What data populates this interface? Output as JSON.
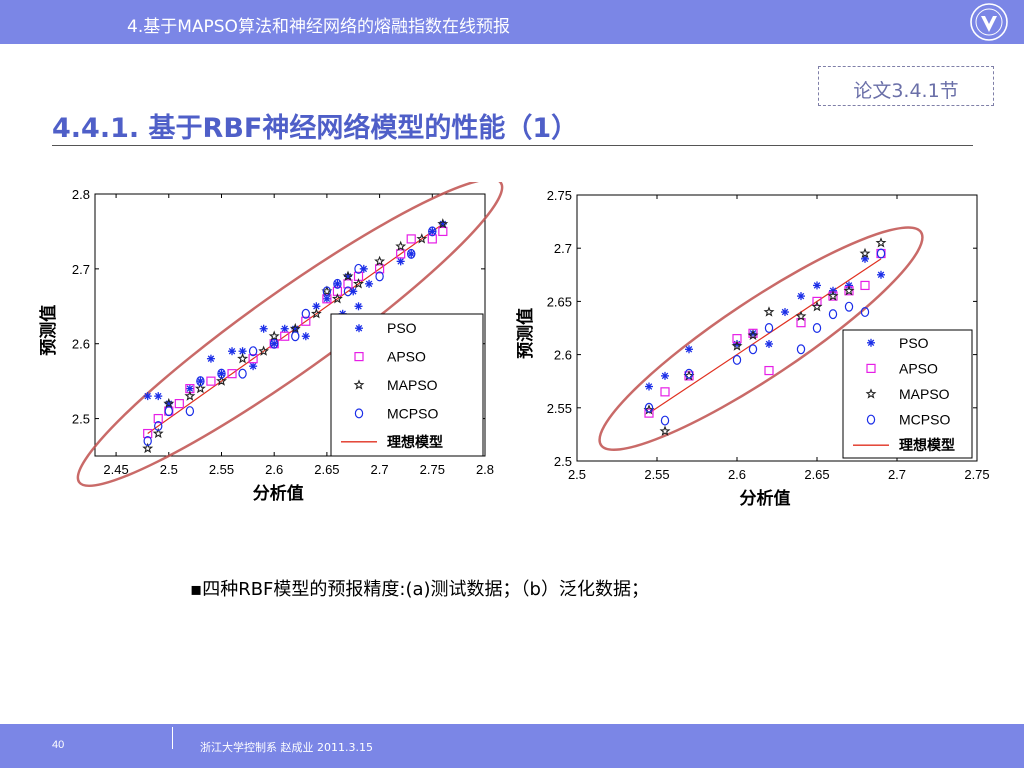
{
  "header": {
    "title": "4.基于MAPSO算法和神经网络的熔融指数在线预报",
    "logo_icon": "university-seal-icon"
  },
  "reference": {
    "label": "论文3.4.1节"
  },
  "page_heading": "4.4.1. 基于RBF神经网络模型的性能（1）",
  "caption": "▪四种RBF模型的预报精度:(a)测试数据；（b）泛化数据；",
  "footer": {
    "page_number": "40",
    "text": "浙江大学控制系 赵成业 2011.3.15"
  },
  "colors": {
    "bar": "#7b86e6",
    "heading": "#4f5fc8",
    "ellipse": "#c0504d",
    "ideal_line": "#e03020",
    "pso": "#1b2ee8",
    "apso": "#e61ee6",
    "mapso": "#222222",
    "mcpso": "#1b2ee8"
  },
  "chart_data": [
    {
      "type": "scatter",
      "xlabel": "分析值",
      "ylabel": "预测值",
      "xlim": [
        2.43,
        2.8
      ],
      "ylim": [
        2.45,
        2.8
      ],
      "xticks": [
        2.45,
        2.5,
        2.55,
        2.6,
        2.65,
        2.7,
        2.75,
        2.8
      ],
      "yticks": [
        2.5,
        2.6,
        2.7,
        2.8
      ],
      "xtick_labels": [
        "2.45",
        "2.5",
        "2.55",
        "2.6",
        "2.65",
        "2.7",
        "2.75",
        "2.8"
      ],
      "ytick_labels": [
        "2.5",
        "2.6",
        "2.7",
        "2.8"
      ],
      "legend_position": "bottom-right",
      "ellipse": {
        "center": [
          2.615,
          2.615
        ],
        "semi_major_along_diagonal": 0.2,
        "semi_minor": 0.032
      },
      "ideal_line": [
        [
          2.48,
          2.48
        ],
        [
          2.76,
          2.76
        ]
      ],
      "series": [
        {
          "name": "PSO",
          "marker": "asterisk",
          "color": "#1b2ee8",
          "points": [
            [
              2.48,
              2.53
            ],
            [
              2.49,
              2.53
            ],
            [
              2.5,
              2.52
            ],
            [
              2.52,
              2.54
            ],
            [
              2.53,
              2.55
            ],
            [
              2.54,
              2.58
            ],
            [
              2.55,
              2.56
            ],
            [
              2.56,
              2.59
            ],
            [
              2.57,
              2.59
            ],
            [
              2.58,
              2.57
            ],
            [
              2.59,
              2.62
            ],
            [
              2.6,
              2.6
            ],
            [
              2.61,
              2.62
            ],
            [
              2.62,
              2.62
            ],
            [
              2.63,
              2.61
            ],
            [
              2.64,
              2.65
            ],
            [
              2.65,
              2.66
            ],
            [
              2.66,
              2.68
            ],
            [
              2.665,
              2.64
            ],
            [
              2.67,
              2.69
            ],
            [
              2.675,
              2.67
            ],
            [
              2.68,
              2.65
            ],
            [
              2.685,
              2.7
            ],
            [
              2.69,
              2.68
            ],
            [
              2.72,
              2.71
            ],
            [
              2.73,
              2.72
            ],
            [
              2.75,
              2.75
            ],
            [
              2.76,
              2.76
            ]
          ]
        },
        {
          "name": "APSO",
          "marker": "square",
          "color": "#e61ee6",
          "points": [
            [
              2.48,
              2.48
            ],
            [
              2.49,
              2.5
            ],
            [
              2.5,
              2.51
            ],
            [
              2.51,
              2.52
            ],
            [
              2.52,
              2.54
            ],
            [
              2.54,
              2.55
            ],
            [
              2.56,
              2.56
            ],
            [
              2.58,
              2.58
            ],
            [
              2.6,
              2.6
            ],
            [
              2.61,
              2.61
            ],
            [
              2.63,
              2.63
            ],
            [
              2.65,
              2.66
            ],
            [
              2.66,
              2.67
            ],
            [
              2.67,
              2.68
            ],
            [
              2.68,
              2.69
            ],
            [
              2.7,
              2.7
            ],
            [
              2.72,
              2.72
            ],
            [
              2.73,
              2.74
            ],
            [
              2.75,
              2.74
            ],
            [
              2.76,
              2.75
            ]
          ]
        },
        {
          "name": "MAPSO",
          "marker": "star",
          "color": "#222222",
          "points": [
            [
              2.48,
              2.46
            ],
            [
              2.49,
              2.48
            ],
            [
              2.5,
              2.52
            ],
            [
              2.52,
              2.53
            ],
            [
              2.53,
              2.54
            ],
            [
              2.55,
              2.55
            ],
            [
              2.57,
              2.58
            ],
            [
              2.59,
              2.59
            ],
            [
              2.6,
              2.61
            ],
            [
              2.62,
              2.62
            ],
            [
              2.64,
              2.64
            ],
            [
              2.65,
              2.67
            ],
            [
              2.66,
              2.66
            ],
            [
              2.67,
              2.69
            ],
            [
              2.68,
              2.68
            ],
            [
              2.7,
              2.71
            ],
            [
              2.72,
              2.73
            ],
            [
              2.74,
              2.74
            ],
            [
              2.76,
              2.76
            ]
          ]
        },
        {
          "name": "MCPSO",
          "marker": "circle",
          "color": "#1b2ee8",
          "points": [
            [
              2.48,
              2.47
            ],
            [
              2.49,
              2.49
            ],
            [
              2.5,
              2.51
            ],
            [
              2.52,
              2.51
            ],
            [
              2.53,
              2.55
            ],
            [
              2.55,
              2.56
            ],
            [
              2.57,
              2.56
            ],
            [
              2.58,
              2.59
            ],
            [
              2.6,
              2.6
            ],
            [
              2.62,
              2.61
            ],
            [
              2.63,
              2.64
            ],
            [
              2.65,
              2.67
            ],
            [
              2.66,
              2.68
            ],
            [
              2.67,
              2.67
            ],
            [
              2.68,
              2.7
            ],
            [
              2.7,
              2.69
            ],
            [
              2.73,
              2.72
            ],
            [
              2.75,
              2.75
            ]
          ]
        },
        {
          "name": "理想模型",
          "marker": "line",
          "color": "#e03020",
          "points": []
        }
      ]
    },
    {
      "type": "scatter",
      "xlabel": "分析值",
      "ylabel": "预测值",
      "xlim": [
        2.5,
        2.75
      ],
      "ylim": [
        2.5,
        2.75
      ],
      "xticks": [
        2.5,
        2.55,
        2.6,
        2.65,
        2.7,
        2.75
      ],
      "yticks": [
        2.5,
        2.55,
        2.6,
        2.65,
        2.7,
        2.75
      ],
      "xtick_labels": [
        "2.5",
        "2.55",
        "2.6",
        "2.65",
        "2.7",
        "2.75"
      ],
      "ytick_labels": [
        "2.5",
        "2.55",
        "2.6",
        "2.65",
        "2.7",
        "2.75"
      ],
      "legend_position": "bottom-right",
      "ellipse": {
        "center": [
          2.615,
          2.615
        ],
        "semi_major_along_diagonal": 0.1,
        "semi_minor": 0.02
      },
      "ideal_line": [
        [
          2.545,
          2.545
        ],
        [
          2.69,
          2.69
        ]
      ],
      "series": [
        {
          "name": "PSO",
          "marker": "asterisk",
          "color": "#1b2ee8",
          "points": [
            [
              2.545,
              2.57
            ],
            [
              2.555,
              2.58
            ],
            [
              2.57,
              2.605
            ],
            [
              2.6,
              2.61
            ],
            [
              2.61,
              2.62
            ],
            [
              2.62,
              2.61
            ],
            [
              2.63,
              2.64
            ],
            [
              2.64,
              2.655
            ],
            [
              2.65,
              2.665
            ],
            [
              2.66,
              2.66
            ],
            [
              2.67,
              2.665
            ],
            [
              2.68,
              2.69
            ],
            [
              2.69,
              2.675
            ]
          ]
        },
        {
          "name": "APSO",
          "marker": "square",
          "color": "#e61ee6",
          "points": [
            [
              2.545,
              2.545
            ],
            [
              2.555,
              2.565
            ],
            [
              2.57,
              2.58
            ],
            [
              2.6,
              2.615
            ],
            [
              2.61,
              2.62
            ],
            [
              2.62,
              2.585
            ],
            [
              2.64,
              2.63
            ],
            [
              2.65,
              2.65
            ],
            [
              2.66,
              2.655
            ],
            [
              2.67,
              2.66
            ],
            [
              2.68,
              2.665
            ],
            [
              2.69,
              2.695
            ]
          ]
        },
        {
          "name": "MAPSO",
          "marker": "star",
          "color": "#222222",
          "points": [
            [
              2.545,
              2.548
            ],
            [
              2.555,
              2.528
            ],
            [
              2.57,
              2.58
            ],
            [
              2.6,
              2.608
            ],
            [
              2.61,
              2.618
            ],
            [
              2.62,
              2.64
            ],
            [
              2.64,
              2.636
            ],
            [
              2.65,
              2.645
            ],
            [
              2.66,
              2.655
            ],
            [
              2.67,
              2.66
            ],
            [
              2.68,
              2.695
            ],
            [
              2.69,
              2.705
            ]
          ]
        },
        {
          "name": "MCPSO",
          "marker": "circle",
          "color": "#1b2ee8",
          "points": [
            [
              2.545,
              2.55
            ],
            [
              2.555,
              2.538
            ],
            [
              2.57,
              2.582
            ],
            [
              2.6,
              2.595
            ],
            [
              2.61,
              2.605
            ],
            [
              2.62,
              2.625
            ],
            [
              2.64,
              2.605
            ],
            [
              2.65,
              2.625
            ],
            [
              2.66,
              2.638
            ],
            [
              2.67,
              2.645
            ],
            [
              2.68,
              2.64
            ],
            [
              2.69,
              2.695
            ]
          ]
        },
        {
          "name": "理想模型",
          "marker": "line",
          "color": "#e03020",
          "points": []
        }
      ]
    }
  ]
}
